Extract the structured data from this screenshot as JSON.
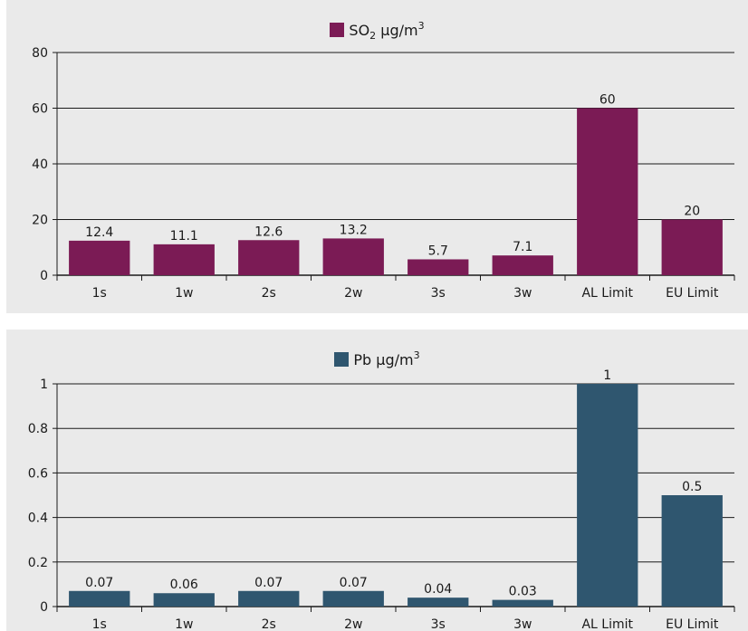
{
  "chart_data": [
    {
      "type": "bar",
      "legend": {
        "prefix": "SO",
        "sub": "2",
        "unit": " µg/m",
        "sup": "3"
      },
      "color": "#7b1b55",
      "categories": [
        "1s",
        "1w",
        "2s",
        "2w",
        "3s",
        "3w",
        "AL Limit",
        "EU Limit"
      ],
      "values": [
        12.4,
        11.1,
        12.6,
        13.2,
        5.7,
        7.1,
        60,
        20
      ],
      "value_labels": [
        "12.4",
        "11.1",
        "12.6",
        "13.2",
        "5.7",
        "7.1",
        "60",
        "20"
      ],
      "ylim": [
        0,
        80
      ],
      "yticks": [
        0,
        20,
        40,
        60,
        80
      ],
      "ytick_labels": [
        "0",
        "20",
        "40",
        "60",
        "80"
      ],
      "grid": true,
      "legend_position": "top-center"
    },
    {
      "type": "bar",
      "legend": {
        "prefix": "Pb",
        "sub": "",
        "unit": " µg/m",
        "sup": "3"
      },
      "color": "#2f566f",
      "categories": [
        "1s",
        "1w",
        "2s",
        "2w",
        "3s",
        "3w",
        "AL Limit",
        "EU Limit"
      ],
      "values": [
        0.07,
        0.06,
        0.07,
        0.07,
        0.04,
        0.03,
        1,
        0.5
      ],
      "value_labels": [
        "0.07",
        "0.06",
        "0.07",
        "0.07",
        "0.04",
        "0.03",
        "1",
        "0.5"
      ],
      "ylim": [
        0,
        1
      ],
      "yticks": [
        0,
        0.2,
        0.4,
        0.6,
        0.8,
        1
      ],
      "ytick_labels": [
        "0",
        "0.2",
        "0.4",
        "0.6",
        "0.8",
        "1"
      ],
      "grid": true,
      "legend_position": "top-center"
    }
  ]
}
